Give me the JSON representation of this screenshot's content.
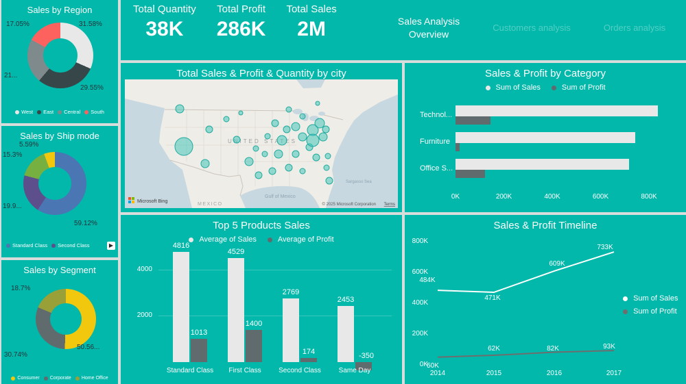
{
  "theme": {
    "background": "#01B8AA",
    "bar_light": "#E8E8E8",
    "bar_dark": "#5F6B6D"
  },
  "header": {
    "kpis": [
      {
        "label": "Total Quantity",
        "value": "38K"
      },
      {
        "label": "Total Profit",
        "value": "286K"
      },
      {
        "label": "Total Sales",
        "value": "2M"
      }
    ],
    "nav": [
      {
        "label": "Sales Analysis Overview",
        "active": true
      },
      {
        "label": "Customers analysis",
        "active": false
      },
      {
        "label": "Orders analysis",
        "active": false
      }
    ]
  },
  "map": {
    "title": "Total Sales & Profit & Quantity by city",
    "labels": {
      "country": "UNITED STATES",
      "gulf": "Gulf of Mexico",
      "mexico": "MEXICO",
      "sea": "Sargasso Sea"
    },
    "bing": "Microsoft Bing",
    "attribution": "© 2025 Microsoft Corporation",
    "terms": "Terms",
    "bubbles": [
      {
        "x": 80,
        "y": 43,
        "r": 6
      },
      {
        "x": 86,
        "y": 98,
        "r": 13
      },
      {
        "x": 117,
        "y": 123,
        "r": 6
      },
      {
        "x": 123,
        "y": 73,
        "r": 5
      },
      {
        "x": 148,
        "y": 58,
        "r": 4
      },
      {
        "x": 163,
        "y": 88,
        "r": 5
      },
      {
        "x": 181,
        "y": 120,
        "r": 6
      },
      {
        "x": 195,
        "y": 140,
        "r": 5
      },
      {
        "x": 215,
        "y": 134,
        "r": 5
      },
      {
        "x": 224,
        "y": 109,
        "r": 6
      },
      {
        "x": 229,
        "y": 89,
        "r": 7
      },
      {
        "x": 219,
        "y": 64,
        "r": 5
      },
      {
        "x": 239,
        "y": 44,
        "r": 4
      },
      {
        "x": 249,
        "y": 69,
        "r": 6
      },
      {
        "x": 259,
        "y": 84,
        "r": 6
      },
      {
        "x": 269,
        "y": 99,
        "r": 5
      },
      {
        "x": 274,
        "y": 74,
        "r": 8
      },
      {
        "x": 284,
        "y": 64,
        "r": 7
      },
      {
        "x": 289,
        "y": 84,
        "r": 6
      },
      {
        "x": 279,
        "y": 114,
        "r": 5
      },
      {
        "x": 294,
        "y": 129,
        "r": 4
      },
      {
        "x": 298,
        "y": 148,
        "r": 5
      },
      {
        "x": 296,
        "y": 112,
        "r": 4
      },
      {
        "x": 259,
        "y": 134,
        "r": 4
      },
      {
        "x": 239,
        "y": 129,
        "r": 5
      },
      {
        "x": 204,
        "y": 109,
        "r": 4
      },
      {
        "x": 169,
        "y": 49,
        "r": 3
      },
      {
        "x": 259,
        "y": 54,
        "r": 4
      },
      {
        "x": 274,
        "y": 89,
        "r": 9
      },
      {
        "x": 249,
        "y": 109,
        "r": 5
      },
      {
        "x": 281,
        "y": 35,
        "r": 3
      },
      {
        "x": 293,
        "y": 73,
        "r": 5
      },
      {
        "x": 236,
        "y": 73,
        "r": 5
      },
      {
        "x": 208,
        "y": 83,
        "r": 4
      },
      {
        "x": 191,
        "y": 101,
        "r": 4
      }
    ]
  },
  "chart_data": [
    {
      "name": "sales-by-region",
      "type": "pie",
      "title": "Sales by Region",
      "labels": [
        "West",
        "East",
        "Central",
        "South"
      ],
      "values_pct": [
        31.58,
        29.55,
        21.82,
        17.05
      ],
      "colors": [
        "#E8E8E8",
        "#374649",
        "#7F8A8D",
        "#FD625E"
      ],
      "display_labels": [
        "31.58%",
        "29.55%",
        "21...",
        "17.05%"
      ]
    },
    {
      "name": "sales-by-ship-mode",
      "type": "pie",
      "title": "Sales by Ship mode",
      "labels": [
        "Standard Class",
        "Second Class",
        "First Class",
        "Same Day"
      ],
      "values_pct": [
        59.12,
        19.99,
        15.3,
        5.59
      ],
      "colors": [
        "#4A77B4",
        "#5D4F8C",
        "#76B041",
        "#F2C80F"
      ],
      "display_labels": [
        "59.12%",
        "19.9...",
        "15.3%",
        "5.59%"
      ]
    },
    {
      "name": "sales-by-segment",
      "type": "pie",
      "title": "Sales by Segment",
      "labels": [
        "Consumer",
        "Corporate",
        "Home Office"
      ],
      "values_pct": [
        50.56,
        30.74,
        18.7
      ],
      "colors": [
        "#F2C80F",
        "#5F6B6D",
        "#9AA038"
      ],
      "display_labels": [
        "50.56...",
        "30.74%",
        "18.7%"
      ]
    },
    {
      "name": "sales-profit-by-category",
      "type": "bar",
      "title": "Sales & Profit by Category",
      "categories": [
        "Technol...",
        "Furniture",
        "Office S..."
      ],
      "series": [
        {
          "name": "Sum of Sales",
          "color": "#E8E8E8",
          "values_k": [
            836,
            742,
            719
          ]
        },
        {
          "name": "Sum of Profit",
          "color": "#5F6B6D",
          "values_k": [
            145,
            18,
            122
          ]
        }
      ],
      "xticks": [
        "0K",
        "200K",
        "400K",
        "600K",
        "800K"
      ],
      "xlim_k": [
        0,
        900
      ]
    },
    {
      "name": "top-5-products-sales",
      "type": "bar",
      "title": "Top 5 Products Sales",
      "categories": [
        "Standard Class",
        "First Class",
        "Second Class",
        "Same Day"
      ],
      "series": [
        {
          "name": "Average of Sales",
          "color": "#E8E8E8",
          "values": [
            4816,
            4529,
            2769,
            2453
          ]
        },
        {
          "name": "Average of Profit",
          "color": "#5F6B6D",
          "values": [
            1013,
            1400,
            174,
            -350
          ]
        }
      ],
      "yticks": [
        "4000",
        "2000"
      ],
      "ylim": [
        -500,
        5000
      ]
    },
    {
      "name": "sales-profit-timeline",
      "type": "line",
      "title": "Sales & Profit Timeline",
      "x": [
        "2014",
        "2015",
        "2016",
        "2017"
      ],
      "series": [
        {
          "name": "Sum of Sales",
          "color": "#FFFFFF",
          "values_k": [
            484,
            471,
            609,
            733
          ],
          "point_labels": [
            "484K",
            "471K",
            "609K",
            "733K"
          ]
        },
        {
          "name": "Sum of Profit",
          "color": "#6E6E6E",
          "values_k": [
            50,
            62,
            82,
            93
          ],
          "point_labels": [
            "50K",
            "62K",
            "82K",
            "93K"
          ]
        }
      ],
      "yticks": [
        "800K",
        "600K",
        "400K",
        "200K",
        "0K"
      ],
      "ylim_k": [
        0,
        800
      ]
    }
  ]
}
